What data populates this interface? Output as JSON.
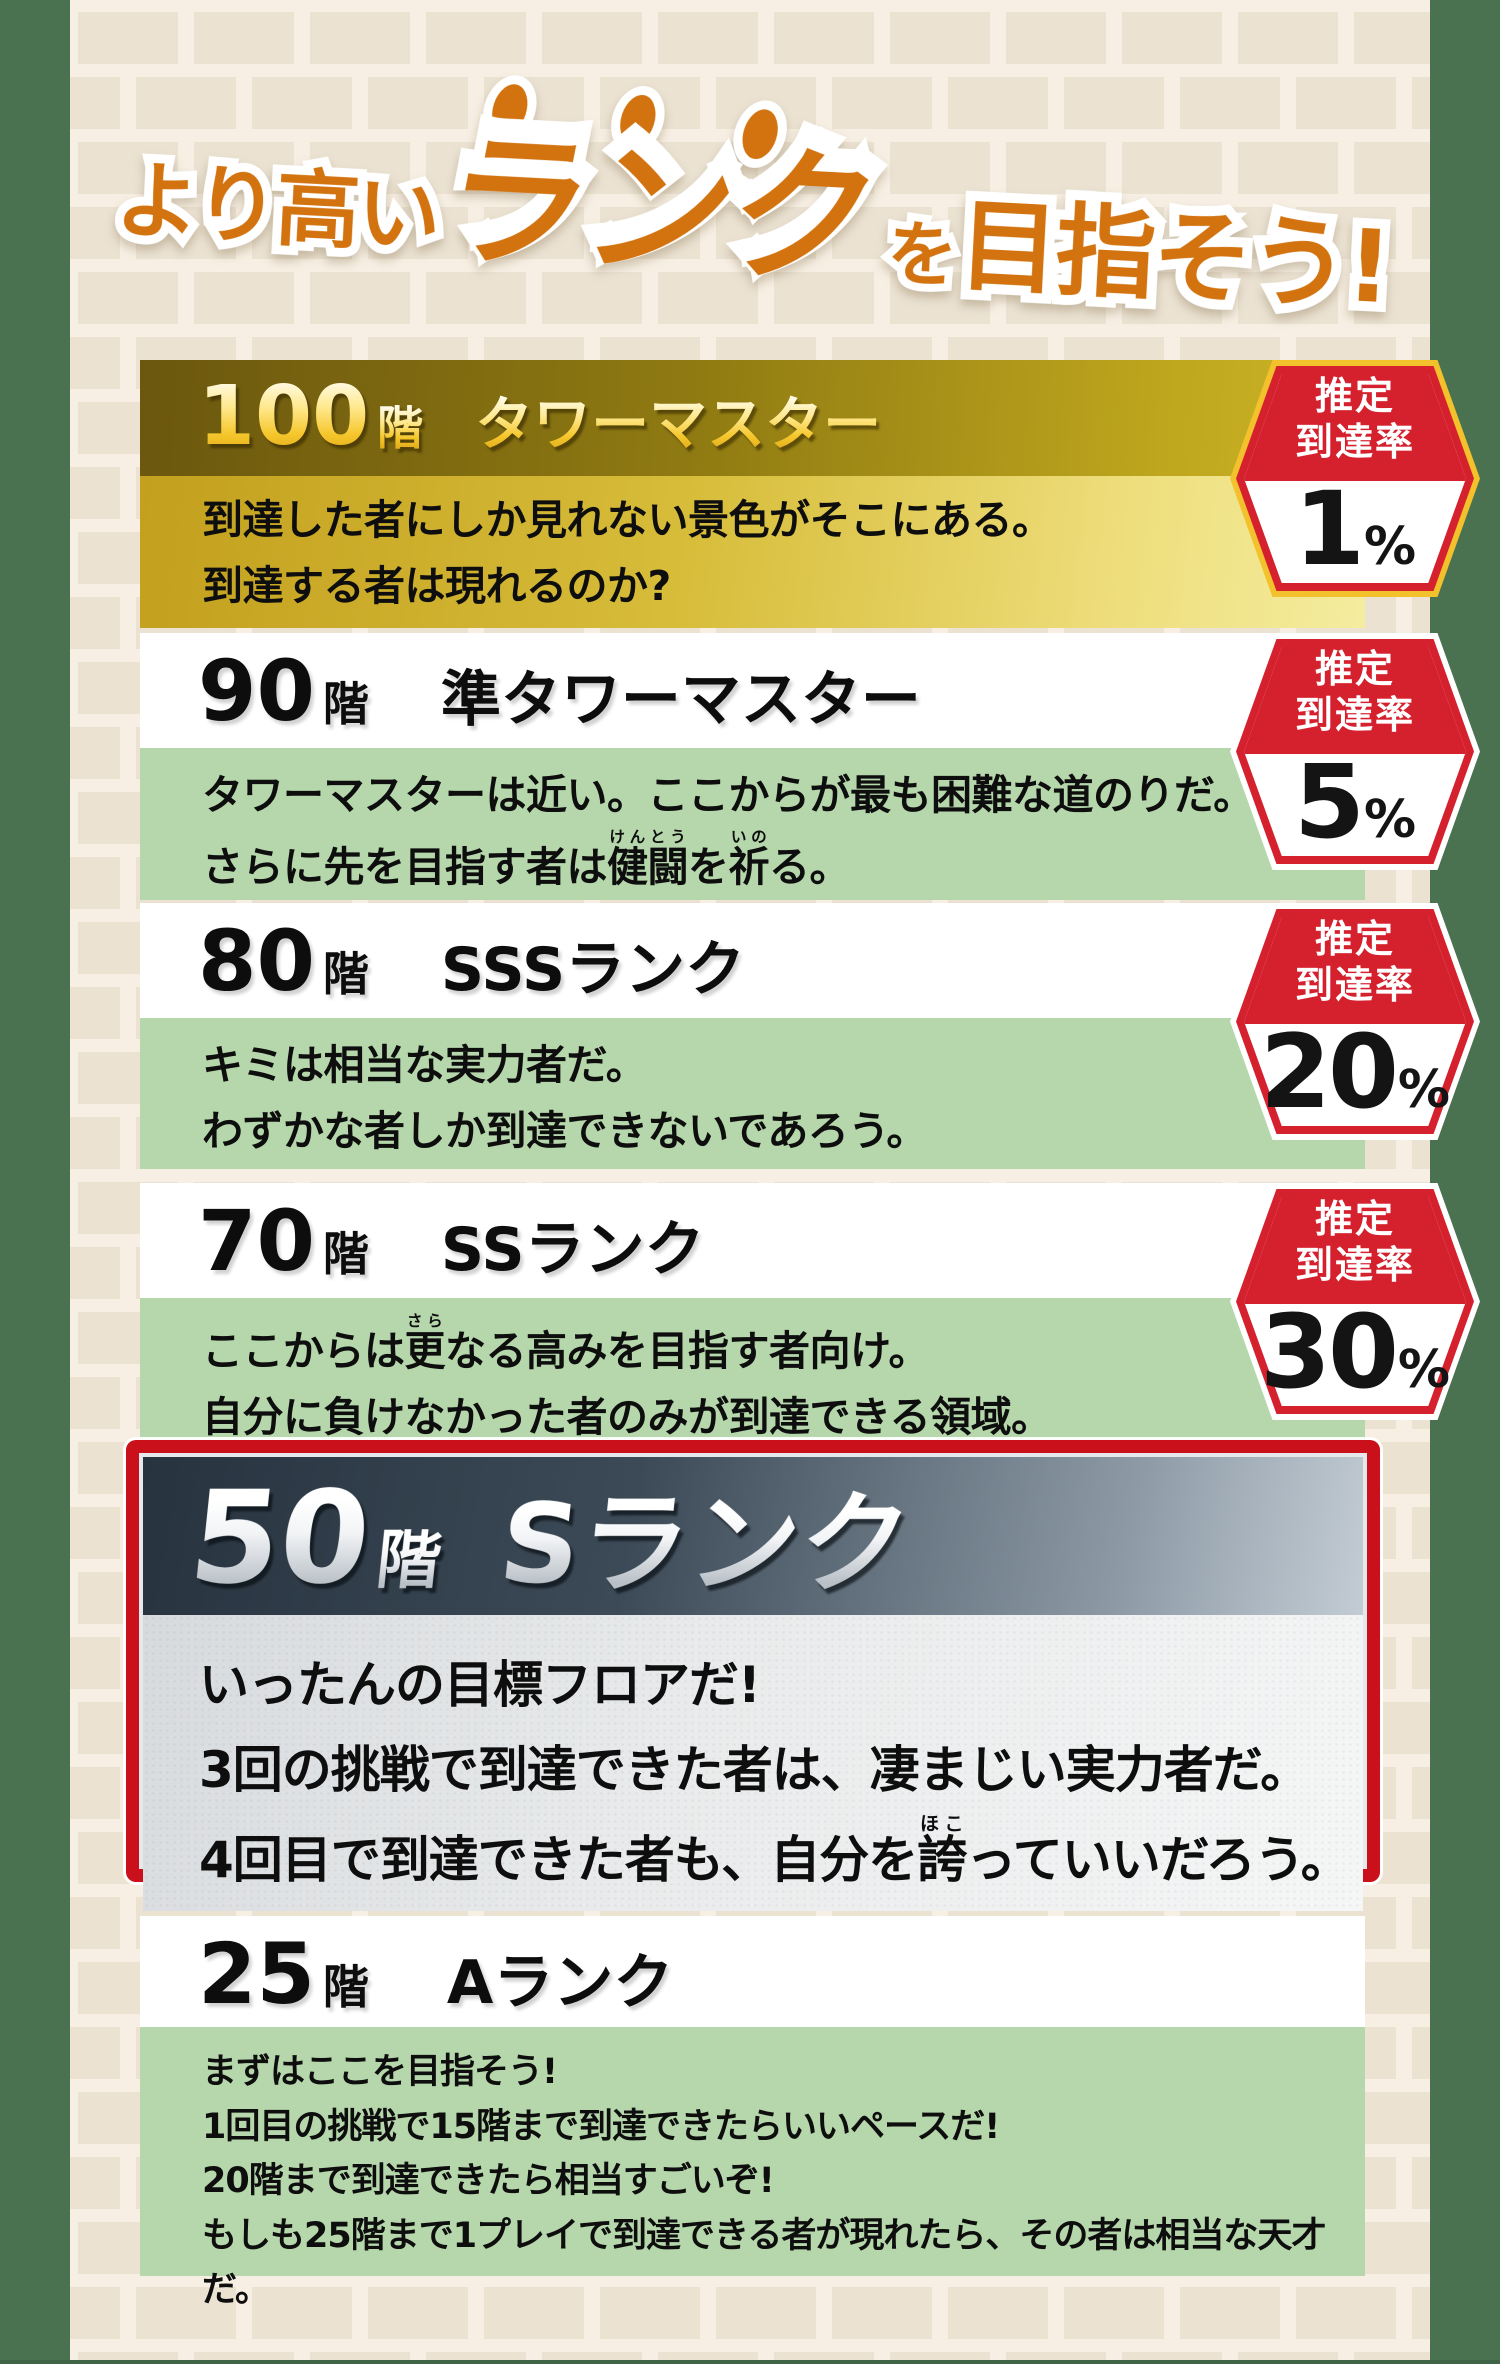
{
  "title": {
    "part1": "より高い",
    "part2": "ランク",
    "part3": "を",
    "part4": "目指そう!"
  },
  "badge": {
    "label_line1": "推定",
    "label_line2": "到達率"
  },
  "cards": [
    {
      "floor": "100",
      "floor_suffix": "階",
      "rank": "タワーマスター",
      "desc_lines": [
        "到達した者にしか見れない景色がそこにある。",
        "到達する者は現れるのか?"
      ],
      "badge_value": "1",
      "badge_unit": "%"
    },
    {
      "floor": "90",
      "floor_suffix": "階",
      "rank": "準タワーマスター",
      "desc_lines": [
        "タワーマスターは近い。ここからが最も困難な道のりだ。",
        "さらに先を目指す者は{健闘|けんとう}を{祈|いの}る。"
      ],
      "badge_value": "5",
      "badge_unit": "%"
    },
    {
      "floor": "80",
      "floor_suffix": "階",
      "rank": "SSSランク",
      "desc_lines": [
        "キミは相当な実力者だ。",
        "わずかな者しか到達できないであろう。"
      ],
      "badge_value": "20",
      "badge_unit": "%"
    },
    {
      "floor": "70",
      "floor_suffix": "階",
      "rank": "SSランク",
      "desc_lines": [
        "ここからは{更|さら}なる高みを目指す者向け。",
        "自分に負けなかった者のみが到達できる領域。"
      ],
      "badge_value": "30",
      "badge_unit": "%"
    },
    {
      "floor": "50",
      "floor_suffix": "階",
      "rank": "Sランク",
      "desc_lines": [
        "いったんの目標フロアだ!",
        "3回の挑戦で到達できた者は、凄まじい実力者だ。",
        "4回目で到達できた者も、自分を{誇|ほこ}っていいだろう。"
      ]
    },
    {
      "floor": "25",
      "floor_suffix": "階",
      "rank": "Aランク",
      "desc_lines": [
        "まずはここを目指そう!",
        "1回目の挑戦で15階まで到達できたらいいペースだ!",
        "20階まで到達できたら相当すごいぞ!",
        "もしも25階まで1プレイで到達できる者が現れたら、その者は相当な天才だ。"
      ]
    }
  ],
  "colors": {
    "accent_orange": "#d2730f",
    "badge_red": "#d5212e",
    "gold_badge_border": "#f2c12b",
    "frame_red": "#c9101b",
    "side_green": "#4a7150",
    "body_green": "#b5d7ab",
    "brick": "#ebe2d2",
    "mortar": "#f7efe3"
  }
}
